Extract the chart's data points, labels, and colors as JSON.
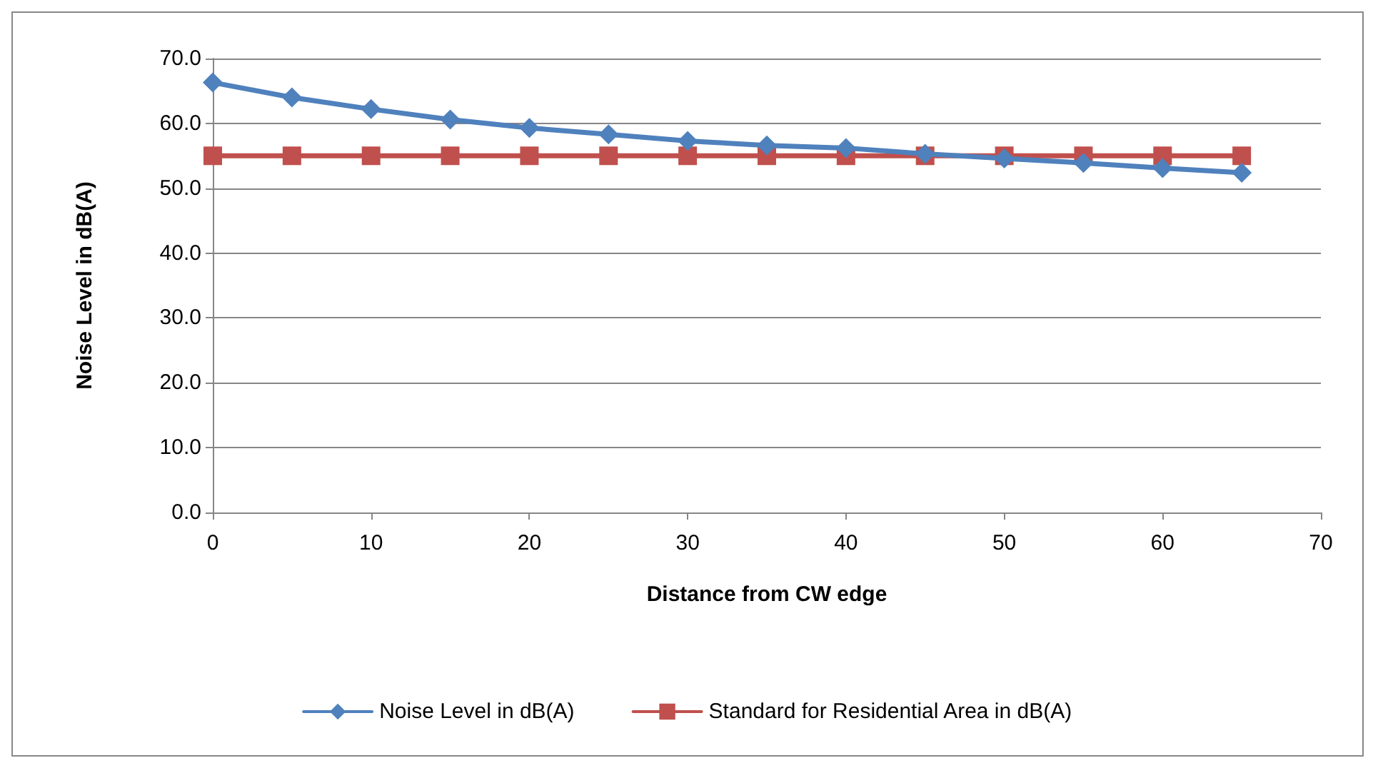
{
  "chart_data": {
    "type": "line",
    "xlabel": "Distance from CW edge",
    "ylabel": "Noise Level in dB(A)",
    "x": [
      0,
      5,
      10,
      15,
      20,
      25,
      30,
      35,
      40,
      45,
      50,
      55,
      60,
      65
    ],
    "series": [
      {
        "name": "Noise Level in dB(A)",
        "color": "#4f81bd",
        "marker": "diamond",
        "values": [
          66.3,
          64.0,
          62.2,
          60.6,
          59.3,
          58.3,
          57.3,
          56.6,
          56.2,
          55.3,
          54.6,
          53.9,
          53.1,
          52.4
        ]
      },
      {
        "name": "Standard for Residential Area in dB(A)",
        "color": "#c0504d",
        "marker": "square",
        "values": [
          55,
          55,
          55,
          55,
          55,
          55,
          55,
          55,
          55,
          55,
          55,
          55,
          55,
          55
        ]
      }
    ],
    "xlim": [
      0,
      70
    ],
    "xticks": [
      0,
      10,
      20,
      30,
      40,
      50,
      60,
      70
    ],
    "ylim": [
      0,
      70
    ],
    "yticks": [
      {
        "value": 0,
        "label": "0.0"
      },
      {
        "value": 10,
        "label": "10.0"
      },
      {
        "value": 20,
        "label": "20.0"
      },
      {
        "value": 30,
        "label": "30.0"
      },
      {
        "value": 40,
        "label": "40.0"
      },
      {
        "value": 50,
        "label": "50.0"
      },
      {
        "value": 60,
        "label": "60.0"
      },
      {
        "value": 70,
        "label": "70.0"
      }
    ],
    "grid": "y",
    "legend": "bottom"
  }
}
